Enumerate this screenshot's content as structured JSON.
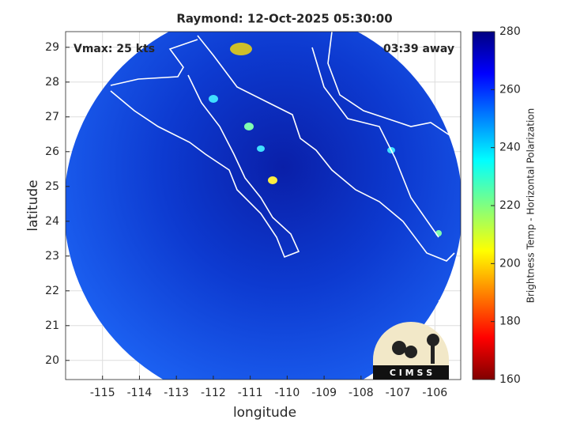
{
  "map": {
    "title": "Raymond: 12-Oct-2025 05:30:00",
    "vmax_label": "Vmax: 25 kts",
    "time_label": "03:39 away",
    "x_label": "longitude",
    "y_label": "latitude",
    "xlim": [
      -116.0,
      -105.3
    ],
    "ylim": [
      19.45,
      29.45
    ],
    "xticks": [
      -115,
      -114,
      -113,
      -112,
      -111,
      -110,
      -109,
      -108,
      -107,
      -106
    ],
    "yticks": [
      20,
      21,
      22,
      23,
      24,
      25,
      26,
      27,
      28,
      29
    ],
    "colorbar": {
      "label": "Brightness Temp - Horizontal Polarization",
      "lim": [
        160,
        280
      ],
      "ticks": [
        160,
        180,
        200,
        220,
        240,
        260,
        280
      ]
    },
    "logo": "C I M S S"
  }
}
